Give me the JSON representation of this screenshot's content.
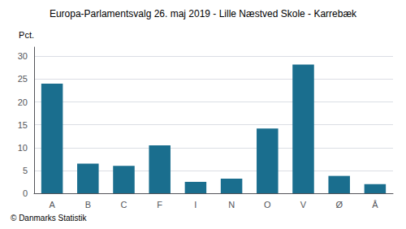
{
  "chart_data": {
    "type": "bar",
    "title": "Europa-Parlamentsvalg 26. maj 2019 - Lille Næstved Skole - Karrebæk",
    "ylabel": "Pct.",
    "footer": "© Danmarks Statistik",
    "categories": [
      "A",
      "B",
      "C",
      "F",
      "I",
      "N",
      "O",
      "V",
      "Ø",
      "Å"
    ],
    "values": [
      24.0,
      6.5,
      6.0,
      10.5,
      2.5,
      3.2,
      14.2,
      28.2,
      3.8,
      2.0
    ],
    "color": "#1a6e8e",
    "ylim": [
      0,
      32
    ],
    "yticks": [
      0,
      5,
      10,
      15,
      20,
      25,
      30
    ],
    "grid": true
  }
}
